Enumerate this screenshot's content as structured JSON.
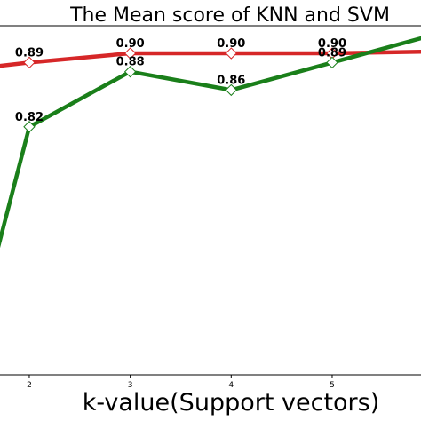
{
  "chart_data": {
    "type": "line",
    "title": "The Mean score of KNN and SVM",
    "xlabel": "k-value(Support vectors)",
    "ylabel": "",
    "x_ticks": [
      2,
      3,
      4,
      5
    ],
    "xlim": [
      1.71,
      5.88
    ],
    "ylim": [
      0.55,
      0.93
    ],
    "grid": false,
    "series": [
      {
        "color": "#d62728",
        "marker": "diamond",
        "points": [
          [
            1.6,
            0.885
          ],
          [
            2,
            0.89
          ],
          [
            3,
            0.9
          ],
          [
            4,
            0.9
          ],
          [
            5,
            0.9
          ],
          [
            6,
            0.902
          ]
        ],
        "labeled_x": [
          2,
          3,
          4,
          5
        ],
        "labels": [
          "0.89",
          "0.90",
          "0.90",
          "0.90"
        ]
      },
      {
        "color": "#1a7f1a",
        "marker": "diamond",
        "points": [
          [
            1.6,
            0.65
          ],
          [
            2,
            0.82
          ],
          [
            3,
            0.88
          ],
          [
            4,
            0.86
          ],
          [
            5,
            0.89
          ],
          [
            6,
            0.92
          ]
        ],
        "labeled_x": [
          2,
          3,
          4,
          5
        ],
        "labels": [
          "0.82",
          "0.88",
          "0.86",
          "0.89"
        ]
      }
    ]
  }
}
